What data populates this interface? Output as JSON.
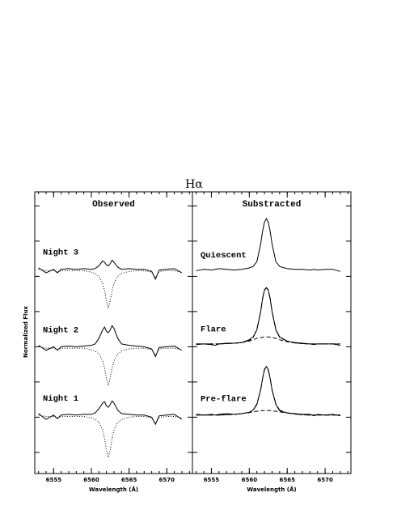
{
  "title": "Hα",
  "y_label": "Normalized Flux",
  "chart_data": [
    {
      "type": "line",
      "title": "Observed",
      "x_label": "Wavelength (Å)",
      "x": [
        6553,
        6554,
        6555,
        6555.5,
        6556,
        6557,
        6558,
        6559,
        6560,
        6560.5,
        6561,
        6561.5,
        6561.75,
        6562,
        6562.25,
        6562.5,
        6562.75,
        6563,
        6563.5,
        6564,
        6565,
        6566,
        6567,
        6568,
        6568.5,
        6569,
        6570,
        6571,
        6572
      ],
      "xlim": [
        6552.5,
        6573.4
      ],
      "xticks": [
        6555,
        6560,
        6565,
        6570
      ],
      "ylim": [
        0.2,
        4.2
      ],
      "yticks": [
        0.5,
        1,
        1.5,
        2,
        2.5,
        3,
        3.5,
        4
      ],
      "series": [
        {
          "name": "Night 3",
          "color": "#000000",
          "style": "solid",
          "values": [
            3.12,
            3.05,
            3.1,
            3.05,
            3.1,
            3.11,
            3.1,
            3.11,
            3.1,
            3.11,
            3.15,
            3.22,
            3.2,
            3.16,
            3.15,
            3.18,
            3.23,
            3.2,
            3.13,
            3.1,
            3.11,
            3.1,
            3.1,
            3.07,
            2.96,
            3.09,
            3.1,
            3.11,
            3.05
          ]
        },
        {
          "color": "#000000",
          "style": "dotted",
          "values": [
            3.1,
            3.08,
            3.08,
            3.06,
            3.08,
            3.08,
            3.08,
            3.08,
            3.06,
            3.04,
            3.0,
            2.9,
            2.8,
            2.65,
            2.55,
            2.65,
            2.8,
            2.9,
            3.0,
            3.04,
            3.07,
            3.08,
            3.08,
            3.06,
            2.98,
            3.07,
            3.08,
            3.08,
            3.06
          ]
        },
        {
          "name": "Night 2",
          "color": "#000000",
          "style": "solid",
          "values": [
            2.02,
            1.95,
            2.0,
            1.95,
            2.0,
            2.01,
            2.0,
            2.01,
            2.02,
            2.04,
            2.12,
            2.24,
            2.28,
            2.22,
            2.2,
            2.24,
            2.3,
            2.26,
            2.12,
            2.04,
            2.02,
            2.01,
            2.0,
            1.97,
            1.86,
            1.99,
            2.0,
            2.01,
            1.95
          ]
        },
        {
          "color": "#000000",
          "style": "dotted",
          "values": [
            2.0,
            1.98,
            1.98,
            1.96,
            1.98,
            1.98,
            1.98,
            1.98,
            1.96,
            1.94,
            1.9,
            1.8,
            1.7,
            1.55,
            1.45,
            1.55,
            1.7,
            1.8,
            1.9,
            1.94,
            1.97,
            1.98,
            1.98,
            1.96,
            1.88,
            1.97,
            1.98,
            1.98,
            1.96
          ]
        },
        {
          "name": "Night 1",
          "color": "#000000",
          "style": "solid",
          "values": [
            1.05,
            0.97,
            1.03,
            0.98,
            1.03,
            1.04,
            1.03,
            1.04,
            1.04,
            1.06,
            1.12,
            1.2,
            1.22,
            1.16,
            1.14,
            1.18,
            1.23,
            1.2,
            1.1,
            1.05,
            1.04,
            1.03,
            1.03,
            1.0,
            0.9,
            1.02,
            1.03,
            1.04,
            0.97
          ]
        },
        {
          "color": "#000000",
          "style": "dotted",
          "values": [
            1.03,
            1.01,
            1.01,
            0.99,
            1.01,
            1.01,
            1.01,
            1.01,
            0.99,
            0.97,
            0.93,
            0.82,
            0.7,
            0.53,
            0.43,
            0.53,
            0.7,
            0.82,
            0.93,
            0.97,
            1.0,
            1.01,
            1.01,
            0.99,
            0.91,
            1.0,
            1.01,
            1.01,
            0.99
          ]
        }
      ]
    },
    {
      "type": "line",
      "title": "Substracted",
      "x_label": "Wavelength (Å)",
      "x": [
        6553,
        6554,
        6555,
        6555.5,
        6556,
        6557,
        6558,
        6559,
        6560,
        6560.5,
        6561,
        6561.5,
        6561.75,
        6562,
        6562.25,
        6562.5,
        6562.75,
        6563,
        6563.5,
        6564,
        6565,
        6566,
        6567,
        6568,
        6568.5,
        6569,
        6570,
        6571,
        6572
      ],
      "xlim": [
        6552.5,
        6573.4
      ],
      "xticks": [
        6555,
        6560,
        6565,
        6570
      ],
      "ylim": [
        0.2,
        4.2
      ],
      "yticks": [
        0.5,
        1,
        1.5,
        2,
        2.5,
        3,
        3.5,
        4
      ],
      "series": [
        {
          "name": "Quiescent",
          "color": "#000000",
          "style": "solid",
          "values": [
            3.08,
            3.1,
            3.09,
            3.1,
            3.11,
            3.1,
            3.09,
            3.1,
            3.12,
            3.14,
            3.21,
            3.46,
            3.64,
            3.77,
            3.82,
            3.77,
            3.64,
            3.46,
            3.21,
            3.14,
            3.11,
            3.1,
            3.1,
            3.09,
            3.1,
            3.09,
            3.1,
            3.1,
            3.07
          ]
        },
        {
          "name": "Flare",
          "color": "#000000",
          "style": "solid",
          "values": [
            2.03,
            2.04,
            2.03,
            2.02,
            2.04,
            2.05,
            2.05,
            2.06,
            2.1,
            2.14,
            2.24,
            2.5,
            2.68,
            2.8,
            2.84,
            2.8,
            2.68,
            2.5,
            2.24,
            2.14,
            2.08,
            2.06,
            2.05,
            2.04,
            2.03,
            2.04,
            2.04,
            2.04,
            2.02
          ]
        },
        {
          "color": "#000000",
          "style": "dashed",
          "values": [
            2.04,
            2.04,
            2.04,
            2.04,
            2.04,
            2.045,
            2.05,
            2.06,
            2.08,
            2.1,
            2.12,
            2.13,
            2.135,
            2.14,
            2.14,
            2.14,
            2.135,
            2.13,
            2.12,
            2.1,
            2.07,
            2.055,
            2.045,
            2.04,
            2.04,
            2.04,
            2.04,
            2.04,
            2.04
          ]
        },
        {
          "color": "#000000",
          "style": "longdash",
          "values": [
            2.04,
            2.04,
            2.04,
            2.04,
            2.04,
            2.045,
            2.05,
            2.06,
            2.09,
            2.13,
            2.25,
            2.5,
            2.69,
            2.81,
            2.84,
            2.81,
            2.69,
            2.5,
            2.25,
            2.13,
            2.08,
            2.055,
            2.045,
            2.04,
            2.04,
            2.04,
            2.04,
            2.04,
            2.04
          ]
        },
        {
          "name": "Pre-flare",
          "color": "#000000",
          "style": "solid",
          "values": [
            1.04,
            1.03,
            1.04,
            1.03,
            1.04,
            1.05,
            1.04,
            1.05,
            1.07,
            1.1,
            1.18,
            1.39,
            1.55,
            1.68,
            1.72,
            1.68,
            1.55,
            1.39,
            1.18,
            1.09,
            1.06,
            1.05,
            1.04,
            1.04,
            1.02,
            1.04,
            1.03,
            1.04,
            1.02
          ]
        },
        {
          "color": "#000000",
          "style": "dashed",
          "values": [
            1.03,
            1.03,
            1.03,
            1.03,
            1.03,
            1.035,
            1.04,
            1.05,
            1.065,
            1.075,
            1.085,
            1.09,
            1.093,
            1.095,
            1.095,
            1.095,
            1.093,
            1.09,
            1.085,
            1.075,
            1.06,
            1.045,
            1.035,
            1.03,
            1.03,
            1.03,
            1.03,
            1.03,
            1.03
          ]
        },
        {
          "color": "#000000",
          "style": "longdash",
          "values": [
            1.03,
            1.03,
            1.03,
            1.03,
            1.03,
            1.035,
            1.04,
            1.05,
            1.07,
            1.1,
            1.19,
            1.39,
            1.55,
            1.67,
            1.72,
            1.67,
            1.55,
            1.39,
            1.19,
            1.1,
            1.06,
            1.045,
            1.035,
            1.03,
            1.03,
            1.03,
            1.03,
            1.03,
            1.03
          ]
        }
      ]
    }
  ]
}
